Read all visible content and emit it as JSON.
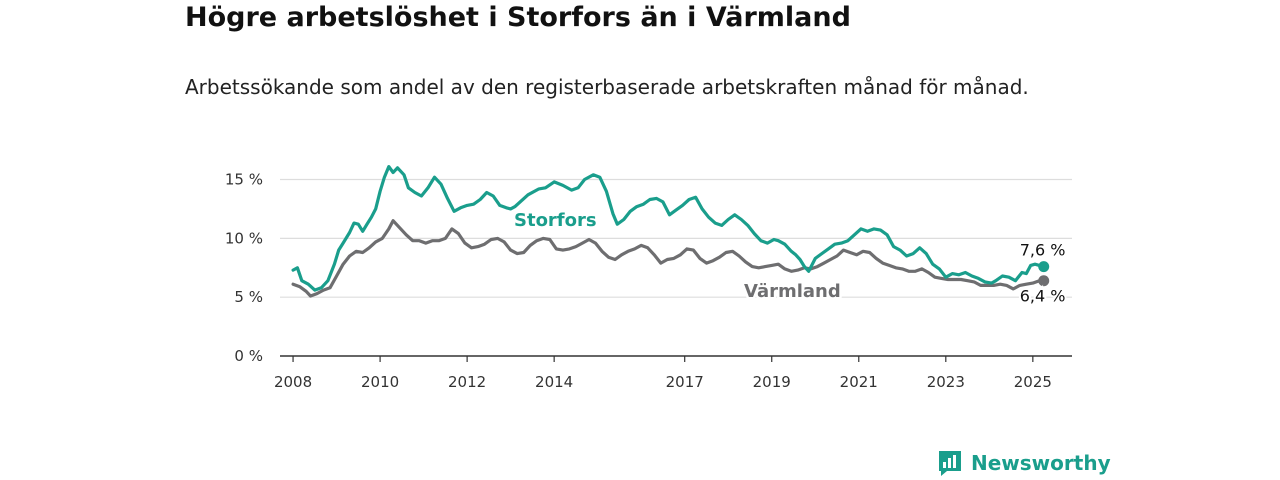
{
  "title": "Högre arbetslöshet i Storfors än i Värmland",
  "subtitle": "Arbetssökande som andel av den registerbaserade arbetskraften månad för månad.",
  "brand": {
    "name": "Newsworthy",
    "icon": "newsworthy-logo-icon"
  },
  "colors": {
    "storfors": "#1a9e8c",
    "varmland": "#6e6e70",
    "grid": "#dddddd",
    "axis": "#333333"
  },
  "chart_data": {
    "type": "line",
    "title": "Högre arbetslöshet i Storfors än i Värmland",
    "subtitle": "Arbetssökande som andel av den registerbaserade arbetskraften månad för månad.",
    "xlabel": "",
    "ylabel": "",
    "x_range": [
      2007.7,
      2025.9
    ],
    "ylim": [
      0,
      17
    ],
    "y_ticks": [
      0,
      5,
      10,
      15
    ],
    "y_tick_labels": [
      "0 %",
      "5 %",
      "10 %",
      "15 %"
    ],
    "x_ticks": [
      2008,
      2010,
      2012,
      2014,
      2017,
      2019,
      2021,
      2023,
      2025
    ],
    "x_tick_labels": [
      "2008",
      "2010",
      "2012",
      "2014",
      "2017",
      "2019",
      "2021",
      "2023",
      "2025"
    ],
    "grid": true,
    "legend": "inline labels",
    "series": [
      {
        "name": "Storfors",
        "end_label": "7,6 %",
        "points": [
          [
            2008.0,
            7.3
          ],
          [
            2008.1,
            7.5
          ],
          [
            2008.2,
            6.4
          ],
          [
            2008.35,
            6.1
          ],
          [
            2008.5,
            5.6
          ],
          [
            2008.65,
            5.8
          ],
          [
            2008.8,
            6.4
          ],
          [
            2008.95,
            7.8
          ],
          [
            2009.05,
            9.0
          ],
          [
            2009.15,
            9.6
          ],
          [
            2009.3,
            10.5
          ],
          [
            2009.4,
            11.3
          ],
          [
            2009.5,
            11.2
          ],
          [
            2009.6,
            10.6
          ],
          [
            2009.7,
            11.2
          ],
          [
            2009.8,
            11.8
          ],
          [
            2009.9,
            12.5
          ],
          [
            2010.0,
            14.0
          ],
          [
            2010.1,
            15.2
          ],
          [
            2010.2,
            16.1
          ],
          [
            2010.3,
            15.6
          ],
          [
            2010.4,
            16.0
          ],
          [
            2010.55,
            15.4
          ],
          [
            2010.65,
            14.3
          ],
          [
            2010.8,
            13.9
          ],
          [
            2010.95,
            13.6
          ],
          [
            2011.1,
            14.3
          ],
          [
            2011.25,
            15.2
          ],
          [
            2011.4,
            14.6
          ],
          [
            2011.55,
            13.4
          ],
          [
            2011.7,
            12.3
          ],
          [
            2011.85,
            12.6
          ],
          [
            2012.0,
            12.8
          ],
          [
            2012.15,
            12.9
          ],
          [
            2012.3,
            13.3
          ],
          [
            2012.45,
            13.9
          ],
          [
            2012.6,
            13.6
          ],
          [
            2012.75,
            12.8
          ],
          [
            2012.9,
            12.6
          ],
          [
            2013.0,
            12.5
          ],
          [
            2013.1,
            12.7
          ],
          [
            2013.4,
            13.7
          ],
          [
            2013.65,
            14.2
          ],
          [
            2013.8,
            14.3
          ],
          [
            2014.0,
            14.8
          ],
          [
            2014.2,
            14.5
          ],
          [
            2014.4,
            14.1
          ],
          [
            2014.55,
            14.3
          ],
          [
            2014.7,
            15.0
          ],
          [
            2014.9,
            15.4
          ],
          [
            2015.05,
            15.2
          ],
          [
            2015.2,
            14.0
          ],
          [
            2015.35,
            12.1
          ],
          [
            2015.45,
            11.2
          ],
          [
            2015.6,
            11.6
          ],
          [
            2015.75,
            12.3
          ],
          [
            2015.9,
            12.7
          ],
          [
            2016.05,
            12.9
          ],
          [
            2016.2,
            13.3
          ],
          [
            2016.35,
            13.4
          ],
          [
            2016.5,
            13.1
          ],
          [
            2016.65,
            12.0
          ],
          [
            2016.8,
            12.4
          ],
          [
            2016.95,
            12.8
          ],
          [
            2017.1,
            13.3
          ],
          [
            2017.25,
            13.5
          ],
          [
            2017.4,
            12.5
          ],
          [
            2017.55,
            11.8
          ],
          [
            2017.7,
            11.3
          ],
          [
            2017.85,
            11.1
          ],
          [
            2018.0,
            11.6
          ],
          [
            2018.15,
            12.0
          ],
          [
            2018.3,
            11.6
          ],
          [
            2018.45,
            11.1
          ],
          [
            2018.6,
            10.4
          ],
          [
            2018.75,
            9.8
          ],
          [
            2018.9,
            9.6
          ],
          [
            2019.05,
            9.9
          ],
          [
            2019.15,
            9.8
          ],
          [
            2019.3,
            9.5
          ],
          [
            2019.45,
            8.9
          ],
          [
            2019.55,
            8.6
          ],
          [
            2019.65,
            8.2
          ],
          [
            2019.75,
            7.6
          ],
          [
            2019.85,
            7.2
          ],
          [
            2020.0,
            8.3
          ],
          [
            2020.15,
            8.7
          ],
          [
            2020.3,
            9.1
          ],
          [
            2020.45,
            9.5
          ],
          [
            2020.6,
            9.6
          ],
          [
            2020.75,
            9.8
          ],
          [
            2020.9,
            10.3
          ],
          [
            2021.05,
            10.8
          ],
          [
            2021.2,
            10.6
          ],
          [
            2021.35,
            10.8
          ],
          [
            2021.5,
            10.7
          ],
          [
            2021.65,
            10.3
          ],
          [
            2021.8,
            9.3
          ],
          [
            2021.95,
            9.0
          ],
          [
            2022.1,
            8.5
          ],
          [
            2022.25,
            8.7
          ],
          [
            2022.4,
            9.2
          ],
          [
            2022.55,
            8.7
          ],
          [
            2022.7,
            7.8
          ],
          [
            2022.85,
            7.4
          ],
          [
            2023.0,
            6.7
          ],
          [
            2023.15,
            7.0
          ],
          [
            2023.3,
            6.9
          ],
          [
            2023.45,
            7.1
          ],
          [
            2023.6,
            6.8
          ],
          [
            2023.75,
            6.6
          ],
          [
            2023.9,
            6.3
          ],
          [
            2024.05,
            6.2
          ],
          [
            2024.15,
            6.4
          ],
          [
            2024.3,
            6.8
          ],
          [
            2024.45,
            6.7
          ],
          [
            2024.6,
            6.4
          ],
          [
            2024.75,
            7.1
          ],
          [
            2024.85,
            7.0
          ],
          [
            2024.95,
            7.7
          ],
          [
            2025.05,
            7.8
          ],
          [
            2025.15,
            7.7
          ],
          [
            2025.25,
            7.6
          ]
        ]
      },
      {
        "name": "Värmland",
        "end_label": "6,4 %",
        "points": [
          [
            2008.0,
            6.1
          ],
          [
            2008.15,
            5.9
          ],
          [
            2008.3,
            5.5
          ],
          [
            2008.4,
            5.1
          ],
          [
            2008.55,
            5.3
          ],
          [
            2008.7,
            5.6
          ],
          [
            2008.85,
            5.8
          ],
          [
            2009.0,
            6.8
          ],
          [
            2009.15,
            7.8
          ],
          [
            2009.3,
            8.5
          ],
          [
            2009.45,
            8.9
          ],
          [
            2009.6,
            8.8
          ],
          [
            2009.75,
            9.2
          ],
          [
            2009.9,
            9.7
          ],
          [
            2010.05,
            10.0
          ],
          [
            2010.2,
            10.8
          ],
          [
            2010.3,
            11.5
          ],
          [
            2010.45,
            10.9
          ],
          [
            2010.6,
            10.3
          ],
          [
            2010.75,
            9.8
          ],
          [
            2010.9,
            9.8
          ],
          [
            2011.05,
            9.6
          ],
          [
            2011.2,
            9.8
          ],
          [
            2011.35,
            9.8
          ],
          [
            2011.5,
            10.0
          ],
          [
            2011.65,
            10.8
          ],
          [
            2011.8,
            10.4
          ],
          [
            2011.95,
            9.6
          ],
          [
            2012.1,
            9.2
          ],
          [
            2012.25,
            9.3
          ],
          [
            2012.4,
            9.5
          ],
          [
            2012.55,
            9.9
          ],
          [
            2012.7,
            10.0
          ],
          [
            2012.85,
            9.7
          ],
          [
            2013.0,
            9.0
          ],
          [
            2013.15,
            8.7
          ],
          [
            2013.3,
            8.8
          ],
          [
            2013.45,
            9.4
          ],
          [
            2013.6,
            9.8
          ],
          [
            2013.75,
            10.0
          ],
          [
            2013.9,
            9.9
          ],
          [
            2014.05,
            9.1
          ],
          [
            2014.2,
            9.0
          ],
          [
            2014.35,
            9.1
          ],
          [
            2014.5,
            9.3
          ],
          [
            2014.65,
            9.6
          ],
          [
            2014.8,
            9.9
          ],
          [
            2014.95,
            9.6
          ],
          [
            2015.1,
            8.9
          ],
          [
            2015.25,
            8.4
          ],
          [
            2015.4,
            8.2
          ],
          [
            2015.55,
            8.6
          ],
          [
            2015.7,
            8.9
          ],
          [
            2015.85,
            9.1
          ],
          [
            2016.0,
            9.4
          ],
          [
            2016.15,
            9.2
          ],
          [
            2016.3,
            8.6
          ],
          [
            2016.45,
            7.9
          ],
          [
            2016.6,
            8.2
          ],
          [
            2016.75,
            8.3
          ],
          [
            2016.9,
            8.6
          ],
          [
            2017.05,
            9.1
          ],
          [
            2017.2,
            9.0
          ],
          [
            2017.35,
            8.3
          ],
          [
            2017.5,
            7.9
          ],
          [
            2017.65,
            8.1
          ],
          [
            2017.8,
            8.4
          ],
          [
            2017.95,
            8.8
          ],
          [
            2018.1,
            8.9
          ],
          [
            2018.25,
            8.5
          ],
          [
            2018.4,
            8.0
          ],
          [
            2018.55,
            7.6
          ],
          [
            2018.7,
            7.5
          ],
          [
            2018.85,
            7.6
          ],
          [
            2019.0,
            7.7
          ],
          [
            2019.15,
            7.8
          ],
          [
            2019.3,
            7.4
          ],
          [
            2019.45,
            7.2
          ],
          [
            2019.6,
            7.3
          ],
          [
            2019.75,
            7.5
          ],
          [
            2019.9,
            7.4
          ],
          [
            2020.05,
            7.6
          ],
          [
            2020.2,
            7.9
          ],
          [
            2020.35,
            8.2
          ],
          [
            2020.5,
            8.5
          ],
          [
            2020.65,
            9.0
          ],
          [
            2020.8,
            8.8
          ],
          [
            2020.95,
            8.6
          ],
          [
            2021.1,
            8.9
          ],
          [
            2021.25,
            8.8
          ],
          [
            2021.4,
            8.3
          ],
          [
            2021.55,
            7.9
          ],
          [
            2021.7,
            7.7
          ],
          [
            2021.85,
            7.5
          ],
          [
            2022.0,
            7.4
          ],
          [
            2022.15,
            7.2
          ],
          [
            2022.3,
            7.2
          ],
          [
            2022.45,
            7.4
          ],
          [
            2022.6,
            7.1
          ],
          [
            2022.75,
            6.7
          ],
          [
            2022.9,
            6.6
          ],
          [
            2023.05,
            6.5
          ],
          [
            2023.2,
            6.5
          ],
          [
            2023.35,
            6.5
          ],
          [
            2023.5,
            6.4
          ],
          [
            2023.65,
            6.3
          ],
          [
            2023.8,
            6.0
          ],
          [
            2023.95,
            6.0
          ],
          [
            2024.1,
            6.0
          ],
          [
            2024.25,
            6.1
          ],
          [
            2024.4,
            6.0
          ],
          [
            2024.55,
            5.7
          ],
          [
            2024.7,
            6.0
          ],
          [
            2024.85,
            6.1
          ],
          [
            2025.0,
            6.2
          ],
          [
            2025.15,
            6.4
          ],
          [
            2025.25,
            6.4
          ]
        ]
      }
    ]
  }
}
